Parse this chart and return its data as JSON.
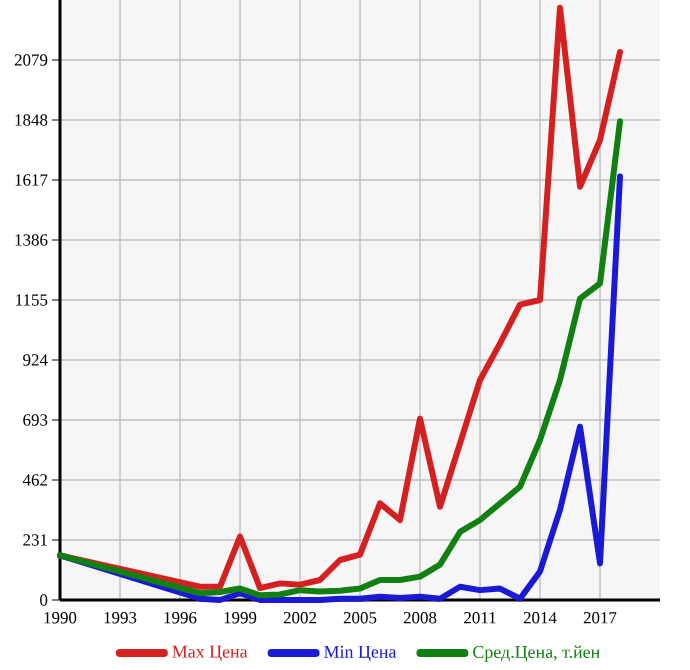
{
  "chart_data": {
    "type": "line",
    "x": [
      1990,
      1997,
      1998,
      1999,
      2000,
      2001,
      2002,
      2003,
      2004,
      2005,
      2006,
      2007,
      2008,
      2009,
      2010,
      2011,
      2012,
      2013,
      2014,
      2015,
      2016,
      2017,
      2018
    ],
    "series": [
      {
        "name": "Max Цена",
        "color": "#d42020",
        "values": [
          172,
          51,
          51,
          244,
          46,
          64,
          59,
          77,
          154,
          175,
          372,
          308,
          698,
          359,
          603,
          847,
          988,
          1137,
          1155,
          2280,
          1591,
          1771,
          2110
        ]
      },
      {
        "name": "Min Цена",
        "color": "#1a1ad4",
        "values": [
          172,
          5,
          0,
          26,
          0,
          0,
          0,
          0,
          5,
          5,
          13,
          8,
          13,
          5,
          51,
          38,
          44,
          5,
          110,
          347,
          667,
          141,
          1630
        ]
      },
      {
        "name": "Сред.Цена, т.йен",
        "color": "#108010",
        "values": [
          172,
          26,
          31,
          44,
          18,
          21,
          38,
          33,
          36,
          44,
          77,
          77,
          90,
          136,
          262,
          308,
          372,
          436,
          616,
          847,
          1160,
          1219,
          1843
        ]
      }
    ],
    "xlim": [
      1990,
      2020
    ],
    "xticks": [
      1990,
      1993,
      1996,
      1999,
      2002,
      2005,
      2008,
      2011,
      2014,
      2017
    ],
    "ylim": [
      0,
      2310
    ],
    "yticks": [
      0,
      231,
      462,
      693,
      924,
      1155,
      1386,
      1617,
      1848,
      2079
    ],
    "grid": true,
    "legend": "bottom",
    "marker": "none",
    "line_style": "solid"
  }
}
